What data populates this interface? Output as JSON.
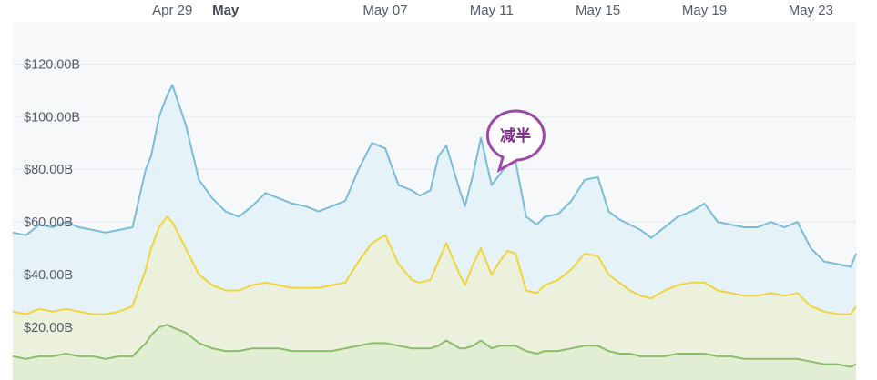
{
  "chart_data": {
    "type": "area",
    "x_tick_labels": [
      {
        "label": "Apr 29",
        "day": 6,
        "bold": false
      },
      {
        "label": "May",
        "day": 8,
        "bold": true
      },
      {
        "label": "May 07",
        "day": 14,
        "bold": false
      },
      {
        "label": "May 11",
        "day": 18,
        "bold": false
      },
      {
        "label": "May 15",
        "day": 22,
        "bold": false
      },
      {
        "label": "May 19",
        "day": 26,
        "bold": false
      },
      {
        "label": "May 23",
        "day": 30,
        "bold": false
      }
    ],
    "y_tick_labels": [
      "$20.00B",
      "$40.00B",
      "$60.00B",
      "$80.00B",
      "$100.00B",
      "$120.00B"
    ],
    "y_tick_values": [
      20,
      40,
      60,
      80,
      100,
      120
    ],
    "ylim": [
      0,
      136
    ],
    "xlim": [
      0,
      31.7
    ],
    "annotation": {
      "text": "减半",
      "day": 18.9
    },
    "colors": {
      "blue_line": "#7bbcd6",
      "blue_fill": "#e2f1f7",
      "yellow_line": "#f0d43c",
      "yellow_fill": "#eef0d6",
      "green_line": "#8cbc6a",
      "green_fill": "#dfeccf",
      "grid": "#e6e9ee",
      "panel": "#f7f8fa",
      "callout": "#9b4aa6"
    },
    "series": [
      {
        "name": "",
        "color": "#7bbcd6",
        "x": [
          0,
          0.5,
          1,
          1.5,
          2,
          2.5,
          3,
          3.5,
          4,
          4.5,
          5,
          5.2,
          5.5,
          5.8,
          6,
          6.5,
          7,
          7.5,
          8,
          8.5,
          9,
          9.5,
          10,
          10.5,
          11,
          11.5,
          12,
          12.5,
          13,
          13.5,
          14,
          14.5,
          15,
          15.3,
          15.7,
          16,
          16.3,
          16.8,
          17,
          17.3,
          17.6,
          18,
          18.3,
          18.6,
          18.9,
          19.3,
          19.7,
          20,
          20.5,
          21,
          21.5,
          22,
          22.4,
          22.8,
          23.2,
          23.6,
          24,
          24.5,
          25,
          25.5,
          26,
          26.5,
          27,
          27.5,
          28,
          28.5,
          29,
          29.5,
          30,
          30.5,
          31,
          31.5,
          31.7
        ],
        "values": [
          56,
          55,
          59,
          58,
          60,
          58,
          57,
          56,
          57,
          58,
          80,
          85,
          100,
          108,
          112,
          97,
          76,
          69,
          64,
          62,
          66,
          71,
          69,
          67,
          66,
          64,
          66,
          68,
          80,
          90,
          88,
          74,
          72,
          70,
          72,
          85,
          89,
          72,
          66,
          78,
          92,
          74,
          78,
          82,
          83,
          62,
          59,
          62,
          63,
          68,
          76,
          77,
          64,
          61,
          59,
          57,
          54,
          58,
          62,
          64,
          67,
          60,
          59,
          58,
          58,
          60,
          58,
          60,
          50,
          45,
          44,
          43,
          48
        ]
      },
      {
        "name": "",
        "color": "#f0d43c",
        "x": [
          0,
          0.5,
          1,
          1.5,
          2,
          2.5,
          3,
          3.5,
          4,
          4.5,
          5,
          5.2,
          5.5,
          5.8,
          6,
          6.5,
          7,
          7.5,
          8,
          8.5,
          9,
          9.5,
          10,
          10.5,
          11,
          11.5,
          12,
          12.5,
          13,
          13.5,
          14,
          14.5,
          15,
          15.3,
          15.7,
          16,
          16.3,
          16.8,
          17,
          17.3,
          17.6,
          18,
          18.3,
          18.6,
          18.9,
          19.3,
          19.7,
          20,
          20.5,
          21,
          21.5,
          22,
          22.4,
          22.8,
          23.2,
          23.6,
          24,
          24.5,
          25,
          25.5,
          26,
          26.5,
          27,
          27.5,
          28,
          28.5,
          29,
          29.5,
          30,
          30.5,
          31,
          31.5,
          31.7
        ],
        "values": [
          26,
          25,
          27,
          26,
          27,
          26,
          25,
          25,
          26,
          28,
          42,
          50,
          58,
          62,
          60,
          50,
          40,
          36,
          34,
          34,
          36,
          37,
          36,
          35,
          35,
          35,
          36,
          37,
          45,
          52,
          55,
          44,
          38,
          37,
          38,
          45,
          52,
          40,
          36,
          44,
          50,
          40,
          45,
          49,
          48,
          34,
          33,
          36,
          38,
          42,
          48,
          47,
          40,
          37,
          34,
          32,
          31,
          34,
          36,
          37,
          37,
          34,
          33,
          32,
          32,
          33,
          32,
          33,
          28,
          26,
          25,
          25,
          28
        ]
      },
      {
        "name": "",
        "color": "#8cbc6a",
        "x": [
          0,
          0.5,
          1,
          1.5,
          2,
          2.5,
          3,
          3.5,
          4,
          4.5,
          5,
          5.2,
          5.5,
          5.8,
          6,
          6.5,
          7,
          7.5,
          8,
          8.5,
          9,
          9.5,
          10,
          10.5,
          11,
          11.5,
          12,
          12.5,
          13,
          13.5,
          14,
          14.5,
          15,
          15.3,
          15.7,
          16,
          16.3,
          16.8,
          17,
          17.3,
          17.6,
          18,
          18.3,
          18.6,
          18.9,
          19.3,
          19.7,
          20,
          20.5,
          21,
          21.5,
          22,
          22.4,
          22.8,
          23.2,
          23.6,
          24,
          24.5,
          25,
          25.5,
          26,
          26.5,
          27,
          27.5,
          28,
          28.5,
          29,
          29.5,
          30,
          30.5,
          31,
          31.5,
          31.7
        ],
        "values": [
          9,
          8,
          9,
          9,
          10,
          9,
          9,
          8,
          9,
          9,
          14,
          17,
          20,
          21,
          20,
          18,
          14,
          12,
          11,
          11,
          12,
          12,
          12,
          11,
          11,
          11,
          11,
          12,
          13,
          14,
          14,
          13,
          12,
          12,
          12,
          13,
          15,
          12,
          12,
          13,
          15,
          12,
          13,
          13,
          13,
          11,
          10,
          11,
          11,
          12,
          13,
          13,
          11,
          10,
          10,
          9,
          9,
          9,
          10,
          10,
          10,
          9,
          9,
          8,
          8,
          8,
          8,
          8,
          7,
          6,
          6,
          5,
          6
        ]
      }
    ]
  }
}
